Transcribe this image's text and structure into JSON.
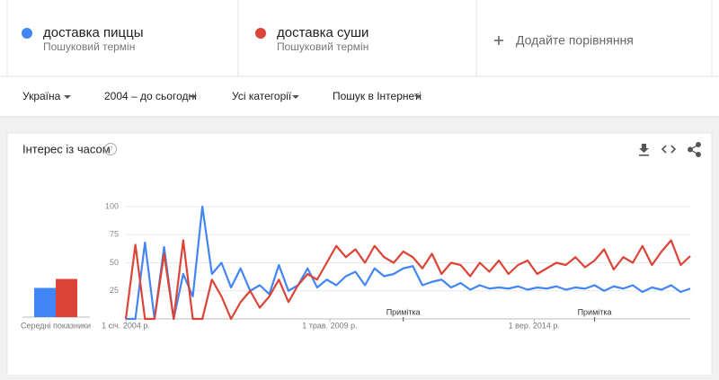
{
  "header": {
    "term_subtitles": [
      "Пошуковий термін",
      "Пошуковий термін"
    ],
    "add_compare": "Додайте порівняння"
  },
  "filters": [
    "Україна",
    "2004 – до сьогодні",
    "Усі категорії",
    "Пошук в Інтернеті"
  ],
  "card_title": "Інтерес із часом",
  "chart_data": {
    "type": "line",
    "x": [
      2004,
      2004.25,
      2004.5,
      2004.75,
      2005,
      2005.25,
      2005.5,
      2005.75,
      2006,
      2006.25,
      2006.5,
      2006.75,
      2007,
      2007.25,
      2007.5,
      2007.75,
      2008,
      2008.25,
      2008.5,
      2008.75,
      2009,
      2009.25,
      2009.5,
      2009.75,
      2010,
      2010.25,
      2010.5,
      2010.75,
      2011,
      2011.25,
      2011.5,
      2011.75,
      2012,
      2012.25,
      2012.5,
      2012.75,
      2013,
      2013.25,
      2013.5,
      2013.75,
      2014,
      2014.25,
      2014.5,
      2014.75,
      2015,
      2015.25,
      2015.5,
      2015.75,
      2016,
      2016.25,
      2016.5,
      2016.75,
      2017,
      2017.25,
      2017.5,
      2017.75,
      2018,
      2018.25,
      2018.5,
      2018.75
    ],
    "series": [
      {
        "name": "доставка пиццы",
        "color": "#4285f4",
        "values": [
          0,
          0,
          68,
          0,
          64,
          0,
          40,
          20,
          100,
          40,
          50,
          28,
          45,
          25,
          30,
          22,
          48,
          25,
          30,
          45,
          28,
          35,
          30,
          38,
          42,
          30,
          45,
          38,
          40,
          45,
          47,
          30,
          33,
          35,
          28,
          32,
          26,
          30,
          27,
          28,
          27,
          29,
          26,
          28,
          27,
          29,
          26,
          28,
          27,
          30,
          25,
          29,
          27,
          30,
          24,
          28,
          26,
          30,
          24,
          27
        ]
      },
      {
        "name": "доставка суши",
        "color": "#db4437",
        "values": [
          0,
          66,
          0,
          0,
          58,
          0,
          70,
          0,
          0,
          35,
          20,
          0,
          15,
          25,
          10,
          20,
          35,
          15,
          30,
          40,
          35,
          50,
          65,
          55,
          62,
          50,
          65,
          55,
          50,
          60,
          55,
          45,
          58,
          40,
          50,
          48,
          38,
          50,
          42,
          52,
          40,
          48,
          52,
          40,
          45,
          50,
          48,
          55,
          46,
          52,
          62,
          44,
          55,
          50,
          65,
          48,
          60,
          70,
          48,
          56
        ]
      }
    ],
    "xlim": [
      2004,
      2018.75
    ],
    "xticks": [
      {
        "value": 2004,
        "label": "1 січ. 2004 р."
      },
      {
        "value": 2009.33,
        "label": "1 трав. 2009 р."
      },
      {
        "value": 2014.67,
        "label": "1 вер. 2014 р."
      }
    ],
    "ylim": [
      0,
      100
    ],
    "yticks": [
      25,
      50,
      75,
      100
    ],
    "grid": true,
    "annotations": [
      {
        "x": 2011.25,
        "label": "Примітка"
      },
      {
        "x": 2016.25,
        "label": "Примітка"
      }
    ],
    "averages": [
      26,
      34
    ],
    "averages_label": "Середні показники"
  }
}
